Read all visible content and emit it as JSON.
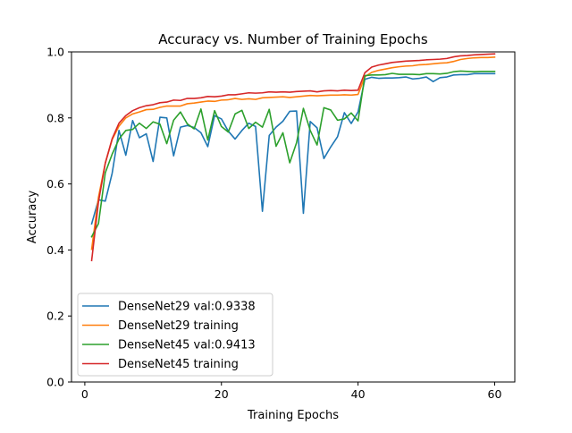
{
  "chart_data": {
    "type": "line",
    "title": "Accuracy vs. Number of Training Epochs",
    "xlabel": "Training Epochs",
    "ylabel": "Accuracy",
    "xlim": [
      -1.95,
      62.95
    ],
    "ylim": [
      0.0,
      1.0
    ],
    "xticks": [
      0,
      20,
      40,
      60
    ],
    "yticks": [
      0.0,
      0.2,
      0.4,
      0.6,
      0.8,
      1.0
    ],
    "xtick_labels": [
      "0",
      "20",
      "40",
      "60"
    ],
    "ytick_labels": [
      "0.0",
      "0.2",
      "0.4",
      "0.6",
      "0.8",
      "1.0"
    ],
    "grid": false,
    "legend_position": "lower-left",
    "x": [
      1,
      2,
      3,
      4,
      5,
      6,
      7,
      8,
      9,
      10,
      11,
      12,
      13,
      14,
      15,
      16,
      17,
      18,
      19,
      20,
      21,
      22,
      23,
      24,
      25,
      26,
      27,
      28,
      29,
      30,
      31,
      32,
      33,
      34,
      35,
      36,
      37,
      38,
      39,
      40,
      41,
      42,
      43,
      44,
      45,
      46,
      47,
      48,
      49,
      50,
      51,
      52,
      53,
      54,
      55,
      56,
      57,
      58,
      59,
      60
    ],
    "series": [
      {
        "name": "DenseNet29 val:0.9338",
        "color": "#1f77b4",
        "values": [
          0.479,
          0.552,
          0.548,
          0.632,
          0.762,
          0.687,
          0.792,
          0.74,
          0.752,
          0.668,
          0.802,
          0.8,
          0.685,
          0.772,
          0.777,
          0.771,
          0.755,
          0.713,
          0.807,
          0.797,
          0.76,
          0.736,
          0.762,
          0.784,
          0.774,
          0.517,
          0.747,
          0.772,
          0.79,
          0.82,
          0.821,
          0.511,
          0.789,
          0.77,
          0.677,
          0.712,
          0.743,
          0.816,
          0.783,
          0.818,
          0.917,
          0.923,
          0.92,
          0.921,
          0.921,
          0.922,
          0.924,
          0.918,
          0.92,
          0.924,
          0.91,
          0.922,
          0.924,
          0.93,
          0.931,
          0.931,
          0.934,
          0.934,
          0.934,
          0.934
        ]
      },
      {
        "name": "DenseNet29 training",
        "color": "#ff7f0e",
        "values": [
          0.402,
          0.56,
          0.664,
          0.734,
          0.775,
          0.8,
          0.812,
          0.818,
          0.825,
          0.826,
          0.832,
          0.836,
          0.836,
          0.836,
          0.843,
          0.845,
          0.848,
          0.851,
          0.85,
          0.854,
          0.855,
          0.859,
          0.856,
          0.858,
          0.856,
          0.861,
          0.862,
          0.863,
          0.864,
          0.862,
          0.864,
          0.866,
          0.868,
          0.867,
          0.868,
          0.869,
          0.869,
          0.87,
          0.869,
          0.871,
          0.925,
          0.938,
          0.944,
          0.948,
          0.952,
          0.955,
          0.957,
          0.958,
          0.961,
          0.962,
          0.964,
          0.966,
          0.967,
          0.971,
          0.977,
          0.98,
          0.982,
          0.983,
          0.983,
          0.984
        ]
      },
      {
        "name": "DenseNet45 val:0.9413",
        "color": "#2ca02c",
        "values": [
          0.44,
          0.48,
          0.634,
          0.69,
          0.736,
          0.762,
          0.765,
          0.784,
          0.768,
          0.788,
          0.781,
          0.722,
          0.793,
          0.818,
          0.782,
          0.767,
          0.827,
          0.733,
          0.822,
          0.774,
          0.757,
          0.812,
          0.823,
          0.768,
          0.787,
          0.772,
          0.826,
          0.714,
          0.755,
          0.664,
          0.725,
          0.829,
          0.762,
          0.718,
          0.831,
          0.824,
          0.793,
          0.797,
          0.815,
          0.791,
          0.928,
          0.93,
          0.93,
          0.931,
          0.935,
          0.932,
          0.932,
          0.932,
          0.931,
          0.934,
          0.934,
          0.933,
          0.935,
          0.94,
          0.942,
          0.941,
          0.94,
          0.941,
          0.941,
          0.941
        ]
      },
      {
        "name": "DenseNet45 training",
        "color": "#d62728",
        "values": [
          0.368,
          0.546,
          0.663,
          0.737,
          0.784,
          0.807,
          0.822,
          0.831,
          0.837,
          0.84,
          0.846,
          0.848,
          0.854,
          0.853,
          0.859,
          0.859,
          0.861,
          0.865,
          0.864,
          0.866,
          0.87,
          0.87,
          0.873,
          0.876,
          0.875,
          0.876,
          0.879,
          0.878,
          0.879,
          0.878,
          0.88,
          0.881,
          0.882,
          0.879,
          0.882,
          0.883,
          0.882,
          0.884,
          0.883,
          0.884,
          0.937,
          0.954,
          0.96,
          0.964,
          0.968,
          0.97,
          0.972,
          0.973,
          0.974,
          0.976,
          0.977,
          0.978,
          0.98,
          0.985,
          0.988,
          0.989,
          0.991,
          0.992,
          0.993,
          0.994
        ]
      }
    ]
  }
}
